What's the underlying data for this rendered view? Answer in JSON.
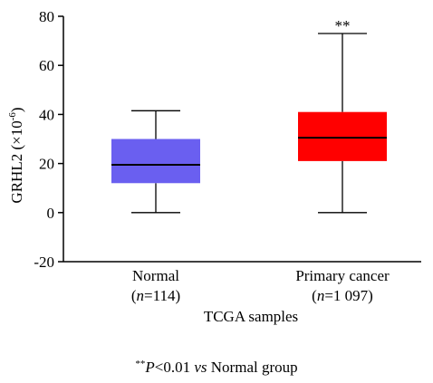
{
  "chart_data": {
    "type": "box",
    "ylabel_main": "GRHL2 (×10",
    "ylabel_exp": "-6",
    "ylabel_close": ")",
    "xlabel": "TCGA samples",
    "ylim": [
      -20,
      80
    ],
    "yticks": [
      "-20",
      "0",
      "20",
      "40",
      "60",
      "80"
    ],
    "ytick_values": [
      -20,
      0,
      20,
      40,
      60,
      80
    ],
    "categories": [
      {
        "name": "Normal",
        "n_prefix": "(",
        "n_italic": "n",
        "n_value": "=114)",
        "min": 0,
        "q1": 12,
        "median": 19.5,
        "q3": 30,
        "max": 41.5,
        "color": "#6a5ff0",
        "significance": ""
      },
      {
        "name": "Primary cancer",
        "n_prefix": "(",
        "n_italic": "n",
        "n_value": "=1 097)",
        "min": 0,
        "q1": 21,
        "median": 30.5,
        "q3": 41,
        "max": 73,
        "color": "#ff0000",
        "significance": "**"
      }
    ],
    "footnote": {
      "stars": "**",
      "p": "P",
      "cond": "<0.01 ",
      "vs": "vs",
      "rest": " Normal group"
    }
  }
}
